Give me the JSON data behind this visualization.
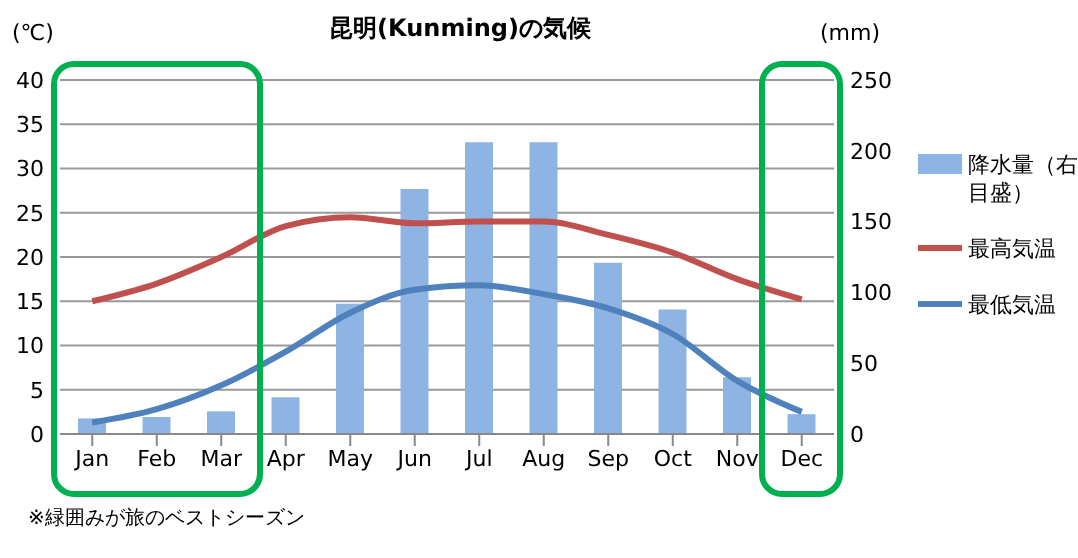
{
  "chart_data": {
    "type": "bar",
    "title": "昆明(Kunming)の気候",
    "ylabel": "(℃)",
    "y2label": "(mm)",
    "categories": [
      "Jan",
      "Feb",
      "Mar",
      "Apr",
      "May",
      "Jun",
      "Jul",
      "Aug",
      "Sep",
      "Oct",
      "Nov",
      "Dec"
    ],
    "series": [
      {
        "name": "降水量（右目盛）",
        "axis": "y2",
        "color": "#8db4e2",
        "values": [
          11,
          12,
          16,
          26,
          92,
          173,
          206,
          206,
          121,
          88,
          40,
          14
        ]
      },
      {
        "name": "最高気温",
        "type": "line",
        "color": "#c0504d",
        "values": [
          15,
          17,
          20,
          23.5,
          24.5,
          23.8,
          24,
          24,
          22.5,
          20.5,
          17.5,
          15.2
        ]
      },
      {
        "name": "最低気温",
        "type": "line",
        "color": "#4f81bd",
        "values": [
          1.3,
          2.8,
          5.5,
          9.3,
          13.7,
          16.3,
          16.8,
          15.8,
          14.2,
          11.3,
          6,
          2.5
        ]
      }
    ],
    "ylim": [
      0,
      40
    ],
    "yticks": [
      0,
      5,
      10,
      15,
      20,
      25,
      30,
      35,
      40
    ],
    "y2lim": [
      0,
      250
    ],
    "y2ticks": [
      0,
      50,
      100,
      150,
      200,
      250
    ],
    "grid": "y",
    "legend": "right",
    "annotations": [
      "※緑囲みが旅のベストシーズン"
    ]
  }
}
